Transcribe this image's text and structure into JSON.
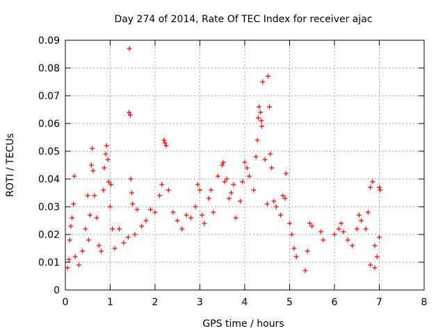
{
  "chart_data": {
    "type": "scatter",
    "title": "Day 274 of 2014, Rate Of TEC Index for receiver ajac",
    "xlabel": "GPS time / hours",
    "ylabel": "ROTI / TECUs",
    "xlim": [
      0,
      8
    ],
    "ylim": [
      0,
      0.09
    ],
    "x_ticks": [
      "0",
      "1",
      "2",
      "3",
      "4",
      "5",
      "6",
      "7",
      "8"
    ],
    "y_ticks": [
      "0",
      "0.01",
      "0.02",
      "0.03",
      "0.04",
      "0.05",
      "0.06",
      "0.07",
      "0.08",
      "0.09"
    ],
    "grid": true,
    "marker": "+",
    "color": "#ff0000",
    "series": [
      {
        "name": "ROTI",
        "points": [
          [
            0.05,
            0.008
          ],
          [
            0.08,
            0.011
          ],
          [
            0.1,
            0.018
          ],
          [
            0.12,
            0.023
          ],
          [
            0.15,
            0.026
          ],
          [
            0.18,
            0.031
          ],
          [
            0.2,
            0.041
          ],
          [
            0.22,
            0.012
          ],
          [
            0.3,
            0.009
          ],
          [
            0.38,
            0.014
          ],
          [
            0.45,
            0.022
          ],
          [
            0.5,
            0.034
          ],
          [
            0.52,
            0.018
          ],
          [
            0.55,
            0.027
          ],
          [
            0.58,
            0.045
          ],
          [
            0.6,
            0.051
          ],
          [
            0.62,
            0.043
          ],
          [
            0.65,
            0.034
          ],
          [
            0.7,
            0.026
          ],
          [
            0.75,
            0.016
          ],
          [
            0.8,
            0.014
          ],
          [
            0.85,
            0.036
          ],
          [
            0.87,
            0.044
          ],
          [
            0.9,
            0.049
          ],
          [
            0.92,
            0.052
          ],
          [
            0.95,
            0.047
          ],
          [
            0.97,
            0.039
          ],
          [
            1.0,
            0.03
          ],
          [
            1.02,
            0.038
          ],
          [
            1.05,
            0.022
          ],
          [
            1.1,
            0.015
          ],
          [
            1.2,
            0.022
          ],
          [
            1.3,
            0.017
          ],
          [
            1.4,
            0.019
          ],
          [
            1.42,
            0.064
          ],
          [
            1.43,
            0.087
          ],
          [
            1.45,
            0.063
          ],
          [
            1.46,
            0.04
          ],
          [
            1.48,
            0.035
          ],
          [
            1.5,
            0.031
          ],
          [
            1.55,
            0.02
          ],
          [
            1.6,
            0.029
          ],
          [
            1.7,
            0.023
          ],
          [
            1.8,
            0.025
          ],
          [
            1.9,
            0.029
          ],
          [
            2.0,
            0.028
          ],
          [
            2.1,
            0.034
          ],
          [
            2.15,
            0.038
          ],
          [
            2.2,
            0.054
          ],
          [
            2.22,
            0.053
          ],
          [
            2.25,
            0.052
          ],
          [
            2.3,
            0.036
          ],
          [
            2.4,
            0.028
          ],
          [
            2.5,
            0.025
          ],
          [
            2.6,
            0.022
          ],
          [
            2.7,
            0.027
          ],
          [
            2.8,
            0.026
          ],
          [
            2.9,
            0.03
          ],
          [
            2.95,
            0.038
          ],
          [
            3.0,
            0.036
          ],
          [
            3.05,
            0.027
          ],
          [
            3.1,
            0.024
          ],
          [
            3.2,
            0.033
          ],
          [
            3.25,
            0.036
          ],
          [
            3.3,
            0.028
          ],
          [
            3.4,
            0.041
          ],
          [
            3.5,
            0.045
          ],
          [
            3.52,
            0.046
          ],
          [
            3.55,
            0.039
          ],
          [
            3.6,
            0.04
          ],
          [
            3.65,
            0.033
          ],
          [
            3.7,
            0.035
          ],
          [
            3.75,
            0.038
          ],
          [
            3.8,
            0.026
          ],
          [
            3.9,
            0.032
          ],
          [
            3.95,
            0.039
          ],
          [
            4.0,
            0.046
          ],
          [
            4.05,
            0.044
          ],
          [
            4.1,
            0.041
          ],
          [
            4.2,
            0.036
          ],
          [
            4.25,
            0.048
          ],
          [
            4.28,
            0.054
          ],
          [
            4.3,
            0.062
          ],
          [
            4.32,
            0.066
          ],
          [
            4.35,
            0.064
          ],
          [
            4.37,
            0.061
          ],
          [
            4.38,
            0.059
          ],
          [
            4.4,
            0.075
          ],
          [
            4.45,
            0.047
          ],
          [
            4.5,
            0.031
          ],
          [
            4.52,
            0.077
          ],
          [
            4.55,
            0.066
          ],
          [
            4.57,
            0.049
          ],
          [
            4.6,
            0.044
          ],
          [
            4.65,
            0.032
          ],
          [
            4.7,
            0.03
          ],
          [
            4.8,
            0.027
          ],
          [
            4.85,
            0.034
          ],
          [
            4.9,
            0.033
          ],
          [
            4.92,
            0.042
          ],
          [
            5.0,
            0.024
          ],
          [
            5.05,
            0.02
          ],
          [
            5.1,
            0.015
          ],
          [
            5.15,
            0.012
          ],
          [
            5.35,
            0.007
          ],
          [
            5.4,
            0.014
          ],
          [
            5.45,
            0.024
          ],
          [
            5.5,
            0.023
          ],
          [
            5.7,
            0.021
          ],
          [
            5.75,
            0.018
          ],
          [
            6.0,
            0.02
          ],
          [
            6.1,
            0.022
          ],
          [
            6.15,
            0.024
          ],
          [
            6.2,
            0.021
          ],
          [
            6.3,
            0.018
          ],
          [
            6.4,
            0.016
          ],
          [
            6.5,
            0.022
          ],
          [
            6.55,
            0.027
          ],
          [
            6.6,
            0.025
          ],
          [
            6.7,
            0.022
          ],
          [
            6.75,
            0.028
          ],
          [
            6.8,
            0.037
          ],
          [
            6.85,
            0.039
          ],
          [
            6.9,
            0.016
          ],
          [
            7.0,
            0.037
          ],
          [
            7.02,
            0.036
          ],
          [
            7.0,
            0.019
          ],
          [
            6.95,
            0.012
          ],
          [
            6.9,
            0.008
          ],
          [
            6.8,
            0.009
          ]
        ]
      }
    ]
  }
}
